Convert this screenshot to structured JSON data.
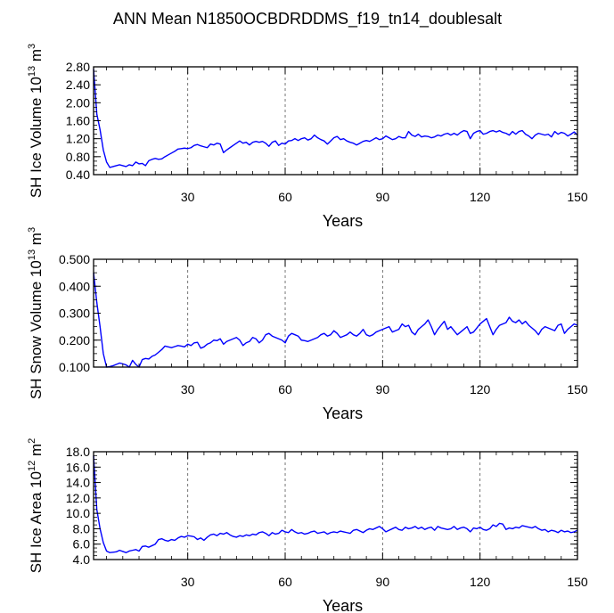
{
  "figure": {
    "title": "ANN Mean N1850OCBDRDDMS_f19_tn14_doublesalt"
  },
  "chart_data": [
    {
      "type": "line",
      "ylabel_main": "SH Ice Volume 10",
      "ylabel_exp": "13",
      "ylabel_unit": " m",
      "ylabel_unit_exp": "3",
      "xlabel": "Years",
      "xlim": [
        1,
        150
      ],
      "ylim": [
        0.4,
        2.8
      ],
      "xticks": [
        30,
        60,
        90,
        120,
        150
      ],
      "yticks": [
        0.4,
        0.8,
        1.2,
        1.6,
        2.0,
        2.4,
        2.8
      ],
      "ytick_labels": [
        "0.40",
        "0.80",
        "1.20",
        "1.60",
        "2.00",
        "2.40",
        "2.80"
      ],
      "line_color": "#0000ff",
      "vgrid": "dashed at major x ticks",
      "series": [
        {
          "values": [
            2.75,
            1.75,
            1.4,
            0.95,
            0.68,
            0.56,
            0.58,
            0.6,
            0.62,
            0.6,
            0.58,
            0.62,
            0.6,
            0.68,
            0.64,
            0.65,
            0.6,
            0.71,
            0.74,
            0.76,
            0.74,
            0.75,
            0.8,
            0.84,
            0.88,
            0.92,
            0.97,
            0.98,
            0.99,
            0.98,
            1.0,
            1.05,
            1.07,
            1.04,
            1.02,
            1.0,
            1.08,
            1.06,
            1.1,
            1.08,
            0.89,
            0.95,
            1.0,
            1.05,
            1.1,
            1.15,
            1.1,
            1.12,
            1.06,
            1.12,
            1.14,
            1.12,
            1.14,
            1.1,
            1.03,
            1.12,
            1.15,
            1.05,
            1.1,
            1.08,
            1.15,
            1.16,
            1.2,
            1.16,
            1.2,
            1.22,
            1.17,
            1.2,
            1.28,
            1.22,
            1.18,
            1.15,
            1.08,
            1.15,
            1.22,
            1.25,
            1.18,
            1.2,
            1.15,
            1.12,
            1.1,
            1.06,
            1.1,
            1.14,
            1.16,
            1.14,
            1.18,
            1.22,
            1.18,
            1.2,
            1.26,
            1.22,
            1.18,
            1.2,
            1.25,
            1.22,
            1.22,
            1.36,
            1.28,
            1.25,
            1.3,
            1.24,
            1.26,
            1.25,
            1.22,
            1.24,
            1.28,
            1.26,
            1.3,
            1.32,
            1.28,
            1.32,
            1.28,
            1.34,
            1.38,
            1.36,
            1.2,
            1.32,
            1.36,
            1.38,
            1.3,
            1.32,
            1.36,
            1.38,
            1.35,
            1.38,
            1.34,
            1.32,
            1.28,
            1.36,
            1.3,
            1.36,
            1.38,
            1.3,
            1.26,
            1.2,
            1.28,
            1.32,
            1.3,
            1.28,
            1.3,
            1.24,
            1.36,
            1.3,
            1.34,
            1.32,
            1.26,
            1.3,
            1.35,
            1.28
          ]
        }
      ]
    },
    {
      "type": "line",
      "ylabel_main": "SH Snow Volume 10",
      "ylabel_exp": "13",
      "ylabel_unit": " m",
      "ylabel_unit_exp": "3",
      "xlabel": "Years",
      "xlim": [
        1,
        150
      ],
      "ylim": [
        0.1,
        0.5
      ],
      "xticks": [
        30,
        60,
        90,
        120,
        150
      ],
      "yticks": [
        0.1,
        0.2,
        0.3,
        0.4,
        0.5
      ],
      "ytick_labels": [
        "0.100",
        "0.200",
        "0.300",
        "0.400",
        "0.500"
      ],
      "line_color": "#0000ff",
      "vgrid": "dashed at major x ticks",
      "series": [
        {
          "values": [
            0.45,
            0.34,
            0.25,
            0.15,
            0.1,
            0.102,
            0.105,
            0.11,
            0.115,
            0.112,
            0.108,
            0.1,
            0.125,
            0.11,
            0.1,
            0.128,
            0.132,
            0.13,
            0.14,
            0.145,
            0.155,
            0.165,
            0.178,
            0.175,
            0.172,
            0.176,
            0.18,
            0.178,
            0.175,
            0.185,
            0.18,
            0.19,
            0.192,
            0.17,
            0.175,
            0.185,
            0.19,
            0.2,
            0.198,
            0.205,
            0.185,
            0.195,
            0.2,
            0.205,
            0.21,
            0.2,
            0.18,
            0.19,
            0.195,
            0.21,
            0.205,
            0.19,
            0.2,
            0.22,
            0.225,
            0.215,
            0.21,
            0.205,
            0.2,
            0.19,
            0.215,
            0.225,
            0.22,
            0.215,
            0.2,
            0.198,
            0.195,
            0.2,
            0.205,
            0.21,
            0.22,
            0.225,
            0.215,
            0.22,
            0.235,
            0.225,
            0.21,
            0.215,
            0.22,
            0.23,
            0.22,
            0.215,
            0.225,
            0.24,
            0.22,
            0.215,
            0.22,
            0.23,
            0.235,
            0.24,
            0.245,
            0.25,
            0.23,
            0.235,
            0.24,
            0.26,
            0.25,
            0.255,
            0.23,
            0.22,
            0.24,
            0.25,
            0.26,
            0.275,
            0.25,
            0.22,
            0.24,
            0.255,
            0.27,
            0.24,
            0.25,
            0.235,
            0.22,
            0.23,
            0.24,
            0.25,
            0.225,
            0.23,
            0.245,
            0.26,
            0.27,
            0.28,
            0.25,
            0.22,
            0.24,
            0.255,
            0.26,
            0.265,
            0.285,
            0.27,
            0.265,
            0.275,
            0.26,
            0.27,
            0.255,
            0.245,
            0.235,
            0.22,
            0.24,
            0.25,
            0.245,
            0.24,
            0.235,
            0.255,
            0.26,
            0.225,
            0.24,
            0.25,
            0.26,
            0.255
          ]
        }
      ]
    },
    {
      "type": "line",
      "ylabel_main": "SH Ice Area 10",
      "ylabel_exp": "12",
      "ylabel_unit": " m",
      "ylabel_unit_exp": "2",
      "xlabel": "Years",
      "xlim": [
        1,
        150
      ],
      "ylim": [
        4.0,
        18.0
      ],
      "xticks": [
        30,
        60,
        90,
        120,
        150
      ],
      "yticks": [
        4,
        6,
        8,
        10,
        12,
        14,
        16,
        18
      ],
      "ytick_labels": [
        "4.0",
        "6.0",
        "8.0",
        "10.0",
        "12.0",
        "14.0",
        "16.0",
        "18.0"
      ],
      "line_color": "#0000ff",
      "vgrid": "dashed at major x ticks",
      "series": [
        {
          "values": [
            17.5,
            10.5,
            8.0,
            6.2,
            5.1,
            4.9,
            4.95,
            5.0,
            5.2,
            5.05,
            4.9,
            5.1,
            5.2,
            5.3,
            5.1,
            5.7,
            5.75,
            5.6,
            5.8,
            6.0,
            6.6,
            6.7,
            6.5,
            6.4,
            6.6,
            6.5,
            6.8,
            7.0,
            6.9,
            7.1,
            7.05,
            6.95,
            6.6,
            6.8,
            6.5,
            6.9,
            7.2,
            7.3,
            7.1,
            7.4,
            7.3,
            7.5,
            7.2,
            7.0,
            6.9,
            7.1,
            7.0,
            7.2,
            7.1,
            7.3,
            7.2,
            7.5,
            7.6,
            7.4,
            7.1,
            7.5,
            7.3,
            7.4,
            7.8,
            7.6,
            7.5,
            7.9,
            7.6,
            7.4,
            7.5,
            7.3,
            7.4,
            7.6,
            7.7,
            7.4,
            7.5,
            7.6,
            7.3,
            7.5,
            7.6,
            7.5,
            7.7,
            7.6,
            7.5,
            7.4,
            7.8,
            7.9,
            7.7,
            7.5,
            7.8,
            8.0,
            7.9,
            8.1,
            8.3,
            8.0,
            7.6,
            7.8,
            8.0,
            8.2,
            7.9,
            7.8,
            8.2,
            8.0,
            8.1,
            8.3,
            8.0,
            8.2,
            7.9,
            8.1,
            8.2,
            7.8,
            8.3,
            8.1,
            8.0,
            7.9,
            8.0,
            8.3,
            7.9,
            8.1,
            8.2,
            8.0,
            7.6,
            8.1,
            8.0,
            8.2,
            7.9,
            7.8,
            8.0,
            8.5,
            8.3,
            8.7,
            8.6,
            7.9,
            8.1,
            8.0,
            8.2,
            8.1,
            8.4,
            8.3,
            8.2,
            8.1,
            8.3,
            8.0,
            7.8,
            7.9,
            7.6,
            7.8,
            7.7,
            7.5,
            7.8,
            7.6,
            7.7,
            7.5,
            7.6,
            7.8
          ]
        }
      ]
    }
  ]
}
